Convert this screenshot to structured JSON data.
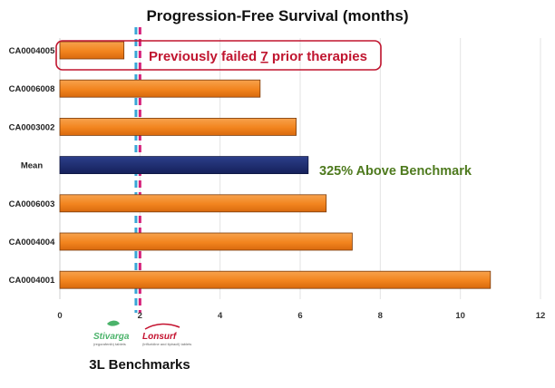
{
  "chart_data": {
    "type": "bar",
    "orientation": "horizontal",
    "title": "Progression-Free Survival (months)",
    "categories": [
      "CA0004005",
      "CA0006008",
      "CA0003002",
      "Mean",
      "CA0006003",
      "CA0004004",
      "CA0004001"
    ],
    "values": [
      1.6,
      5.0,
      5.9,
      6.2,
      6.65,
      7.3,
      10.75
    ],
    "highlight_category": "Mean",
    "xlim": [
      0,
      12
    ],
    "xticks": [
      "0",
      "2",
      "4",
      "6",
      "8",
      "10",
      "12"
    ],
    "grid": "vertical",
    "legend": "none",
    "reference_lines": [
      {
        "value": 1.9,
        "color": "#39a6d6",
        "style": "dashed"
      },
      {
        "value": 2.0,
        "color": "#d6207a",
        "style": "dashed"
      }
    ],
    "annotations": {
      "callout": {
        "pre": "Previously failed ",
        "number": "7",
        "post": " prior therapies",
        "category": "CA0004005"
      },
      "mean_note": {
        "text": "325% Above Benchmark",
        "category": "Mean"
      }
    },
    "benchmarks_label": "3L Benchmarks",
    "logos": [
      {
        "name": "Stivarga",
        "tagline": "(regorafenib) tablets"
      },
      {
        "name": "Lonsurf",
        "tagline": "(trifluridine and tipiracil) tablets"
      }
    ]
  },
  "colors": {
    "bar": "#f2841e",
    "bar_highlight": "#1b2a6b",
    "bar_outline": "#7a3b0c",
    "callout_red": "#c0152f",
    "note_green": "#4e7a1e",
    "grid": "#e3e3e3",
    "stivarga_green": "#4bb36a",
    "lonsurf_red": "#c4122f"
  }
}
